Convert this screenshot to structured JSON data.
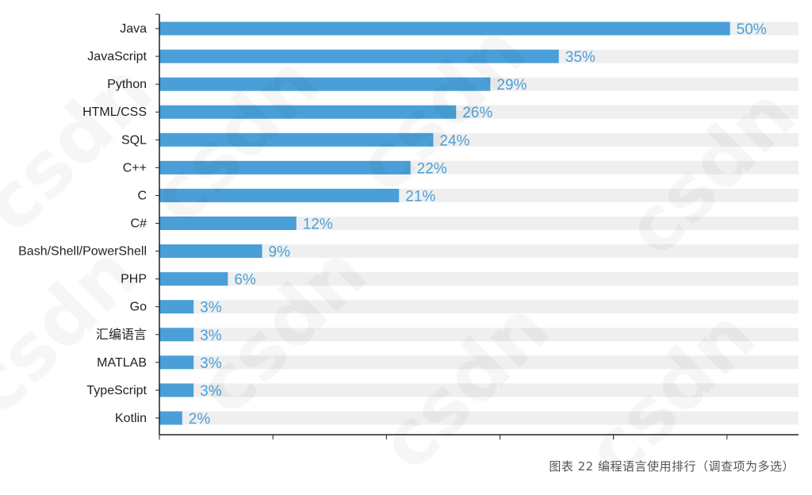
{
  "chart_data": {
    "type": "bar",
    "orientation": "horizontal",
    "categories": [
      "Java",
      "JavaScript",
      "Python",
      "HTML/CSS",
      "SQL",
      "C++",
      "C",
      "C#",
      "Bash/Shell/PowerShell",
      "PHP",
      "Go",
      "汇编语言",
      "MATLAB",
      "TypeScript",
      "Kotlin"
    ],
    "values": [
      50,
      35,
      29,
      26,
      24,
      22,
      21,
      12,
      9,
      6,
      3,
      3,
      3,
      3,
      2
    ],
    "value_labels": [
      "50%",
      "35%",
      "29%",
      "26%",
      "24%",
      "22%",
      "21%",
      "12%",
      "9%",
      "6%",
      "3%",
      "3%",
      "3%",
      "3%",
      "2%"
    ],
    "xlim": [
      0,
      56
    ],
    "bar_color": "#4a9fd8",
    "track_color": "#efefef",
    "axis_color": "#222222",
    "value_label_color": "#4a9fd8",
    "grid": false
  },
  "caption": "图表 22  编程语言使用排行（调查项为多选）",
  "watermark": "csdn"
}
